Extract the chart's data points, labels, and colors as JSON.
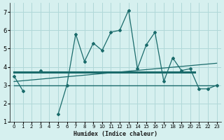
{
  "xlabel": "Humidex (Indice chaleur)",
  "x_values": [
    0,
    1,
    2,
    3,
    4,
    5,
    6,
    7,
    8,
    9,
    10,
    11,
    12,
    13,
    14,
    15,
    16,
    17,
    18,
    19,
    20,
    21,
    22,
    23
  ],
  "y_main": [
    3.5,
    2.7,
    null,
    3.8,
    null,
    1.4,
    3.0,
    5.8,
    4.3,
    5.3,
    4.9,
    5.9,
    6.0,
    7.1,
    3.9,
    5.2,
    5.9,
    3.2,
    4.5,
    3.8,
    3.9,
    2.8,
    2.8,
    3.0
  ],
  "bg_color": "#d6f0ef",
  "line_color": "#1a6b6b",
  "grid_color": "#b0d8d8",
  "ylim": [
    1,
    7.5
  ],
  "xlim": [
    -0.5,
    23.5
  ],
  "yticks": [
    1,
    2,
    3,
    4,
    5,
    6,
    7
  ],
  "xticks": [
    0,
    1,
    2,
    3,
    4,
    5,
    6,
    7,
    8,
    9,
    10,
    11,
    12,
    13,
    14,
    15,
    16,
    17,
    18,
    19,
    20,
    21,
    22,
    23
  ],
  "hline1_y": 3.7,
  "hline1_x": [
    0,
    20.5
  ],
  "hline2_y": 3.0,
  "hline2_x": [
    0,
    23
  ],
  "trend_x": [
    0,
    23
  ],
  "trend_y": [
    3.2,
    4.2
  ]
}
